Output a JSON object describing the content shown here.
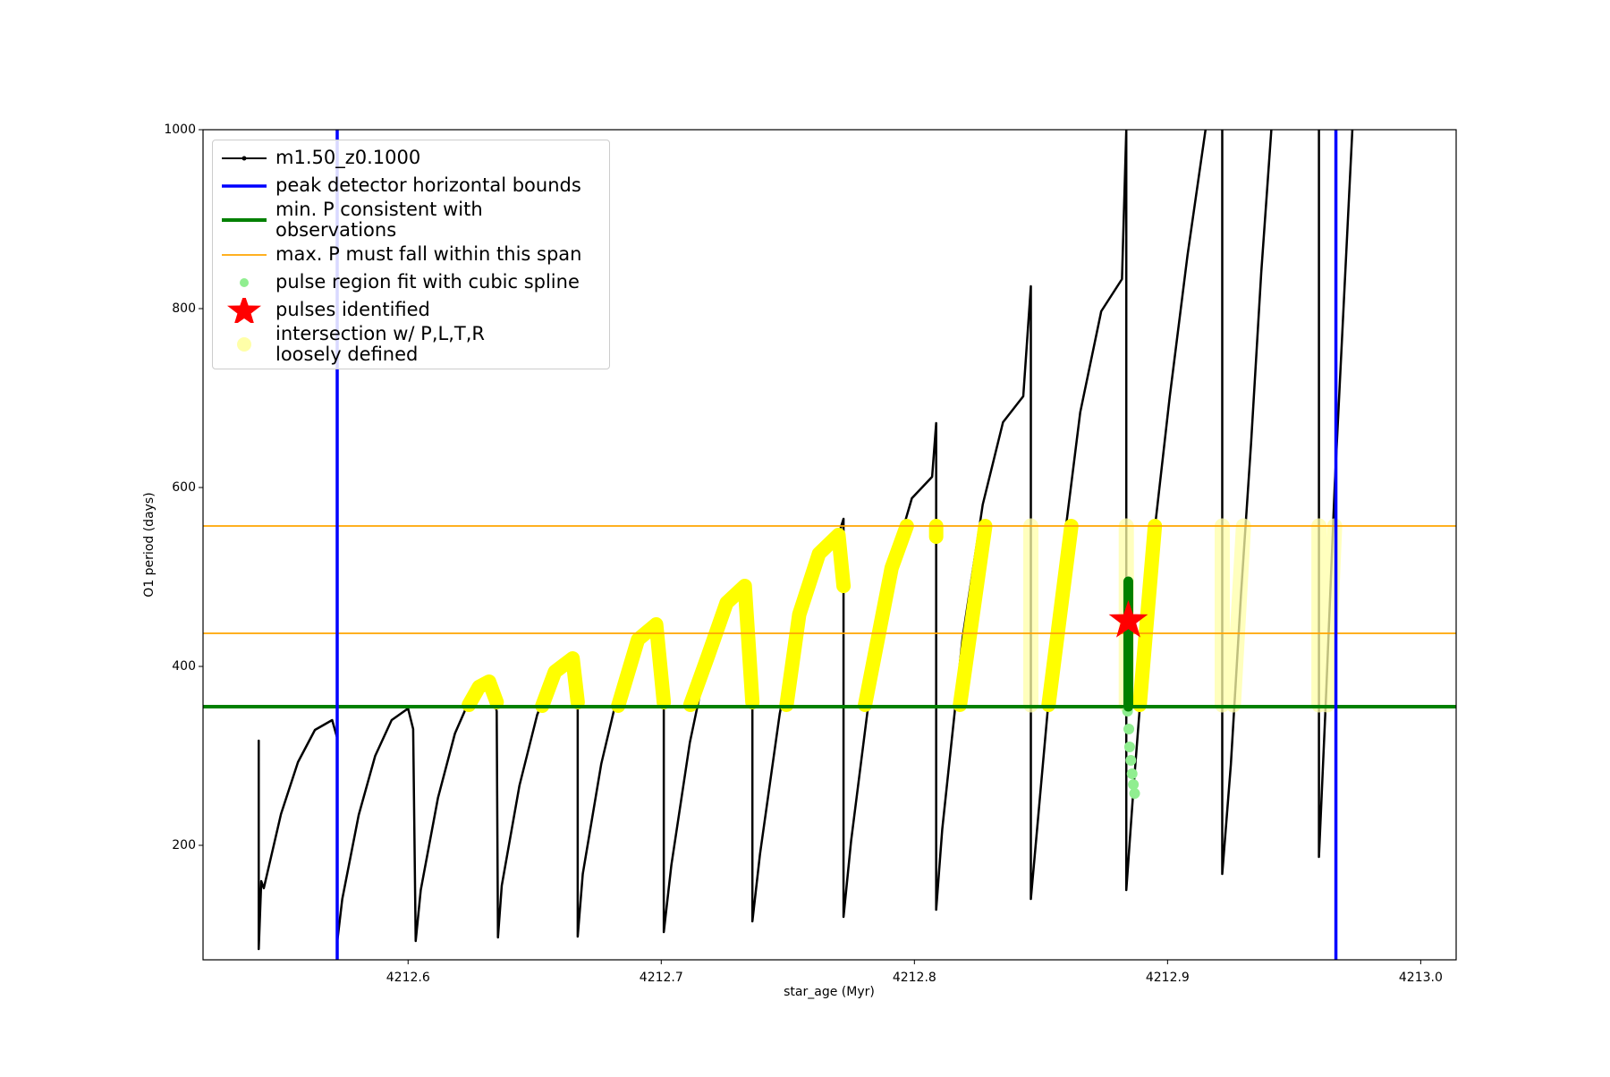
{
  "chart_data": {
    "type": "line",
    "xlabel": "star_age (Myr)",
    "ylabel": "O1 period (days)",
    "xlim": [
      4212.519,
      4213.014
    ],
    "ylim": [
      72,
      1000
    ],
    "xticks": [
      4212.6,
      4212.7,
      4212.8,
      4212.9,
      {
        "value": 4213,
        "label": "4213.0"
      }
    ],
    "yticks": [
      200,
      400,
      600,
      800,
      1000
    ],
    "series": [
      {
        "name": "m1.50_z0.1000",
        "color": "#000000",
        "x": [
          4212.541,
          4212.541,
          4212.541,
          4212.542,
          4212.543,
          4212.5498,
          4212.5565,
          4212.5632,
          4212.57,
          4212.572,
          4212.572,
          4212.574,
          4212.5805,
          4212.587,
          4212.5935,
          4212.6,
          4212.602,
          4212.603,
          4212.605,
          4212.6118,
          4212.6185,
          4212.6253,
          4212.632,
          4212.635,
          4212.6355,
          4212.637,
          4212.644,
          4212.651,
          4212.658,
          4212.665,
          4212.667,
          4212.667,
          4212.669,
          4212.6763,
          4212.6835,
          4212.6908,
          4212.698,
          4212.701,
          4212.701,
          4212.704,
          4212.7113,
          4212.7185,
          4212.7258,
          4212.733,
          4212.736,
          4212.736,
          4212.739,
          4212.7468,
          4212.7545,
          4212.7623,
          4212.77,
          4212.772,
          4212.772,
          4212.775,
          4212.783,
          4212.791,
          4212.799,
          4212.807,
          4212.8086,
          4212.8086,
          4212.811,
          4212.819,
          4212.827,
          4212.835,
          4212.843,
          4212.846,
          4212.846,
          4212.849,
          4212.8573,
          4212.8655,
          4212.8738,
          4212.882,
          4212.8837,
          4212.8837,
          4212.8865,
          4212.8936,
          4212.9008,
          4212.9079,
          4212.915,
          null,
          4212.9216,
          4212.9216,
          4212.925,
          4212.929,
          4212.933,
          4212.937,
          4212.941,
          null,
          4212.9598,
          4212.9598,
          4212.9625,
          4212.966,
          4212.9695,
          4212.973
        ],
        "y": [
          270,
          317,
          84,
          160,
          152,
          235,
          293,
          329,
          340,
          320,
          92,
          140,
          234,
          300,
          340,
          353,
          330,
          93,
          150,
          253,
          325,
          369,
          383,
          350,
          97,
          155,
          267,
          346,
          394,
          409,
          380,
          98,
          168,
          291,
          377,
          430,
          447,
          420,
          103,
          178,
          315,
          412,
          471,
          490,
          460,
          115,
          190,
          347,
          458,
          526,
          547,
          565,
          120,
          205,
          384,
          510,
          588,
          612,
          672,
          128,
          218,
          431,
          581,
          673,
          702,
          825,
          140,
          235,
          498,
          684,
          797,
          833,
          1000,
          150,
          262,
          520,
          700,
          860,
          1000,
          null,
          1000,
          168,
          290,
          480,
          650,
          840,
          1000,
          null,
          1000,
          187,
          360,
          600,
          800,
          1000
        ]
      }
    ],
    "vlines": {
      "name": "peak detector horizontal bounds",
      "color": "#0000ff",
      "x": [
        4212.572,
        4212.9665
      ]
    },
    "hlines": [
      {
        "name": "min. P consistent with observations",
        "color": "#008000",
        "y": [
          355
        ]
      },
      {
        "name": "max. P must fall within this span",
        "color": "#ffa500",
        "y": [
          557,
          437
        ]
      }
    ],
    "intersection": {
      "color": "#ffff00",
      "x": [
        4212.624,
        4212.628,
        4212.632,
        4212.635,
        null,
        4212.653,
        4212.658,
        4212.665,
        4212.667,
        null,
        4212.683,
        4212.6908,
        4212.698,
        4212.701,
        null,
        4212.7115,
        4212.7185,
        4212.7258,
        4212.733,
        4212.736,
        null,
        4212.7495,
        4212.7545,
        4212.7623,
        4212.77,
        4212.772,
        null,
        4212.7805,
        4212.791,
        4212.797,
        null,
        4212.8086,
        4212.8086,
        null,
        4212.818,
        4212.828,
        null,
        4212.853,
        4212.862,
        null,
        4212.889,
        4212.895
      ],
      "y": [
        357,
        377,
        383,
        360,
        null,
        356,
        394,
        409,
        360,
        null,
        356,
        430,
        447,
        360,
        null,
        357,
        412,
        471,
        490,
        360,
        null,
        357,
        458,
        526,
        547,
        490,
        null,
        357,
        510,
        557,
        null,
        557,
        545,
        null,
        357,
        557,
        null,
        357,
        557,
        null,
        357,
        557
      ]
    },
    "intersection_loose": {
      "name": "intersection w/ P,L,T,R\nloosely defined",
      "color": "#ffffa8",
      "x": [
        4212.846,
        4212.846,
        null,
        4212.8837,
        4212.8837,
        null,
        4212.9216,
        4212.9216,
        null,
        4212.926,
        4212.93,
        null,
        4212.9598,
        4212.9598,
        null,
        4212.963,
        4212.966
      ],
      "y": [
        357,
        557,
        null,
        357,
        557,
        null,
        357,
        557,
        null,
        357,
        557,
        null,
        357,
        557,
        null,
        357,
        557
      ]
    },
    "pulse_fit": {
      "name": "pulse region fit with cubic spline",
      "color": "#90ee90",
      "x": [
        4212.8842,
        4212.8847,
        4212.885,
        4212.8855,
        4212.886,
        4212.8865,
        4212.887
      ],
      "y": [
        350,
        330,
        310,
        295,
        280,
        268,
        258
      ]
    },
    "pulse_consistent": {
      "color": "#008000",
      "x": [
        4212.8845,
        4212.8845
      ],
      "y": [
        355,
        495
      ]
    },
    "pulses": {
      "name": "pulses identified",
      "color": "#ff0000",
      "x": [
        4212.8845
      ],
      "y": [
        451
      ]
    }
  }
}
